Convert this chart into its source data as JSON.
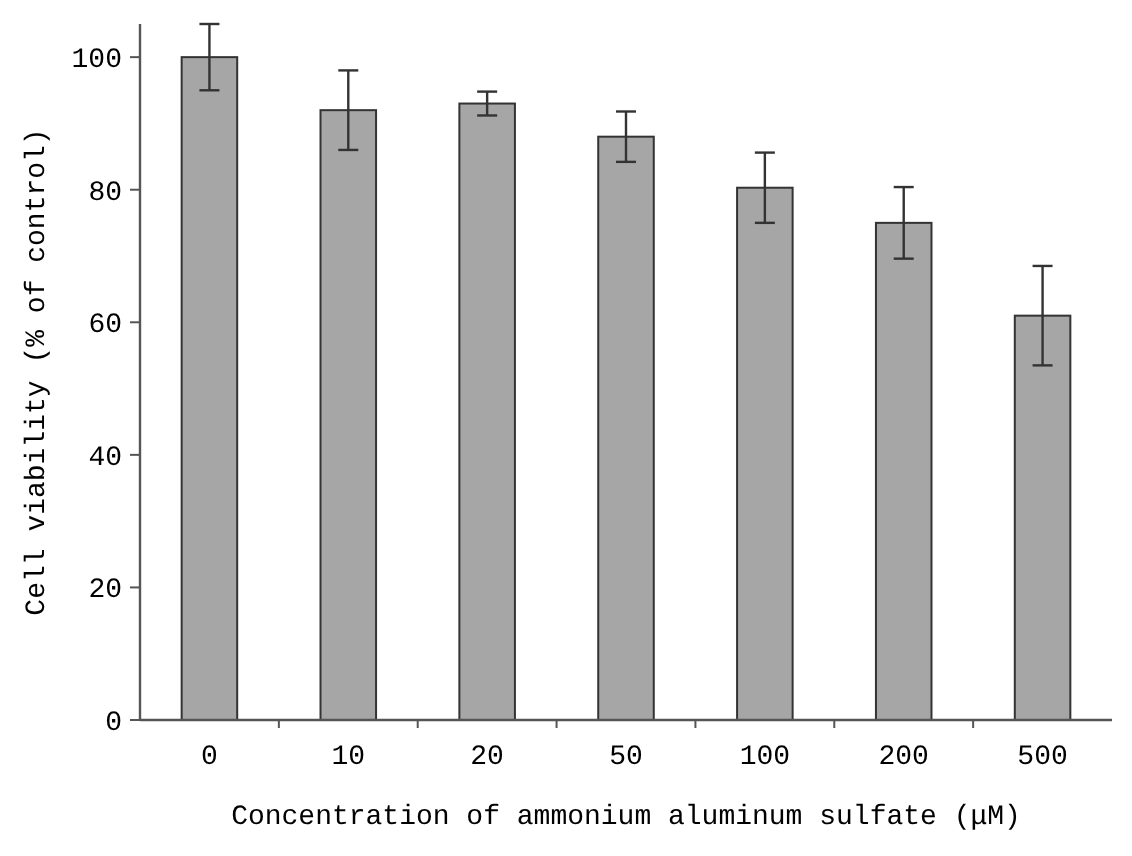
{
  "chart_data": {
    "type": "bar",
    "xlabel": "Concentration of ammonium aluminum sulfate (μM)",
    "ylabel": "Cell viability (% of control)",
    "categories": [
      "0",
      "10",
      "20",
      "50",
      "100",
      "200",
      "500"
    ],
    "values": [
      100,
      92,
      93,
      88,
      80.3,
      75,
      61
    ],
    "errors": [
      5,
      6,
      1.8,
      3.8,
      5.3,
      5.4,
      7.5
    ],
    "color": "#a6a6a6",
    "ylim": [
      0,
      105
    ],
    "yticks": [
      0,
      20,
      40,
      60,
      80,
      100
    ],
    "grid": false
  }
}
